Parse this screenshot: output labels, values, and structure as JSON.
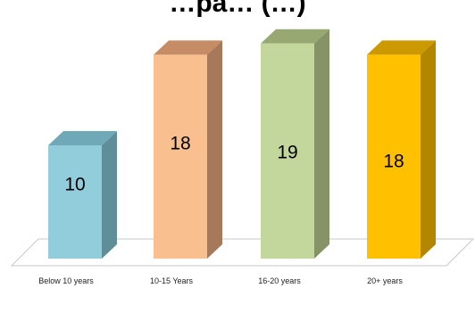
{
  "chart_data": {
    "type": "bar",
    "title": "…pa… (…)",
    "categories": [
      "Below 10 years",
      "10-15 Years",
      "16-20 years",
      "20+ years"
    ],
    "values": [
      10,
      18,
      19,
      18
    ],
    "ylim": [
      0,
      20
    ],
    "grid": false,
    "legend": "none",
    "colors": {
      "front": [
        "#92CDDC",
        "#FABF8F",
        "#C3D69B",
        "#FFC000"
      ],
      "side": [
        "#5F8E99",
        "#A6795A",
        "#859366",
        "#B38600"
      ],
      "top": [
        "#6FA9B8",
        "#C58C65",
        "#98A873",
        "#CC9A00"
      ]
    }
  }
}
